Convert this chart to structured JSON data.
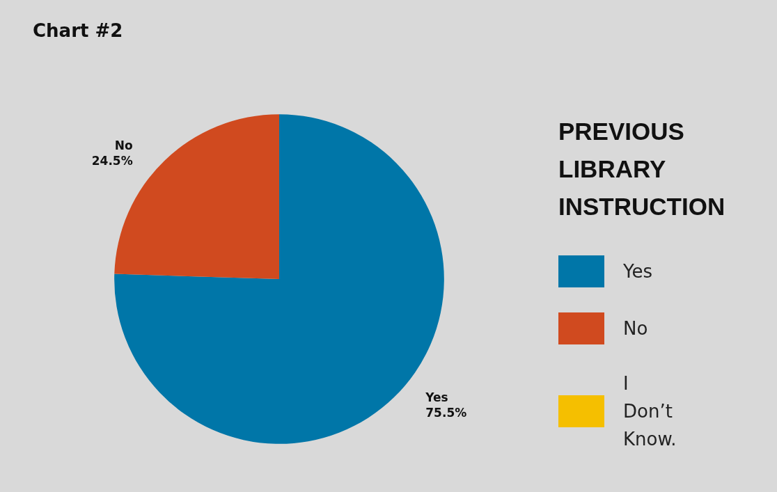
{
  "chart_data": {
    "type": "pie",
    "title": "Chart #2",
    "legend_title": "PREVIOUS LIBRARY INSTRUCTION",
    "categories": [
      "Yes",
      "No",
      "I Don’t Know."
    ],
    "values": [
      75.5,
      24.5,
      0
    ],
    "colors": [
      "#0076a8",
      "#d04a1f",
      "#f5bf00"
    ],
    "value_labels": [
      "75.5%",
      "24.5%",
      null
    ],
    "legend": "right"
  }
}
